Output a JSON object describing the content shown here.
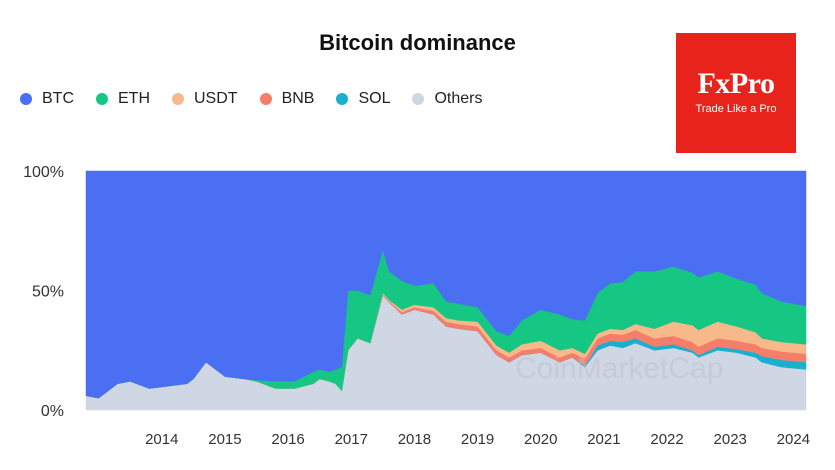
{
  "chart_data": {
    "type": "area",
    "title": "Bitcoin dominance",
    "stacked": true,
    "xlabel": "",
    "ylabel": "",
    "x_ticks": [
      "2014",
      "2015",
      "2016",
      "2017",
      "2018",
      "2019",
      "2020",
      "2021",
      "2022",
      "2023",
      "2024"
    ],
    "y_ticks": [
      "0%",
      "50%",
      "100%"
    ],
    "ylim": [
      0,
      100
    ],
    "xlim": [
      2013.3,
      2024.7
    ],
    "grid": false,
    "legend_position": "top-left",
    "x": [
      2013.3,
      2013.5,
      2013.8,
      2014.0,
      2014.3,
      2014.6,
      2014.9,
      2015.0,
      2015.2,
      2015.5,
      2015.8,
      2016.0,
      2016.3,
      2016.6,
      2016.9,
      2017.0,
      2017.15,
      2017.25,
      2017.35,
      2017.45,
      2017.6,
      2017.8,
      2018.0,
      2018.1,
      2018.3,
      2018.5,
      2018.8,
      2019.0,
      2019.2,
      2019.5,
      2019.8,
      2020.0,
      2020.2,
      2020.5,
      2020.8,
      2021.0,
      2021.2,
      2021.4,
      2021.6,
      2021.8,
      2022.0,
      2022.3,
      2022.6,
      2022.9,
      2023.0,
      2023.3,
      2023.6,
      2023.9,
      2024.0,
      2024.3,
      2024.7
    ],
    "series": [
      {
        "name": "Others",
        "color": "#cfd6e4",
        "values": [
          6,
          5,
          11,
          12,
          9,
          10,
          11,
          13,
          20,
          14,
          13,
          12,
          9,
          9,
          11,
          13,
          12,
          11,
          8,
          25,
          30,
          28,
          48,
          45,
          40,
          42,
          40,
          35,
          34,
          33,
          23,
          20,
          23,
          24,
          20,
          22,
          18,
          25,
          27,
          26,
          28,
          25,
          26,
          24,
          22,
          25,
          24,
          22,
          20,
          18,
          17
        ]
      },
      {
        "name": "SOL",
        "color": "#1aaecf",
        "values": [
          0,
          0,
          0,
          0,
          0,
          0,
          0,
          0,
          0,
          0,
          0,
          0,
          0,
          0,
          0,
          0,
          0,
          0,
          0,
          0,
          0,
          0,
          0,
          0,
          0,
          0,
          0,
          0,
          0,
          0,
          0,
          0,
          0,
          0,
          0,
          0,
          0.5,
          2,
          2,
          2.5,
          2,
          1.5,
          1.5,
          1,
          1,
          1.5,
          1.5,
          2,
          2.5,
          3,
          3
        ]
      },
      {
        "name": "BNB",
        "color": "#f47e6a",
        "values": [
          0,
          0,
          0,
          0,
          0,
          0,
          0,
          0,
          0,
          0,
          0,
          0,
          0,
          0,
          0,
          0,
          0,
          0,
          0,
          0,
          0,
          0,
          0.5,
          0.5,
          1,
          1,
          1.5,
          2,
          2,
          2,
          2,
          2,
          2,
          2,
          2,
          2,
          3,
          3,
          3,
          3,
          3.5,
          3.5,
          3.5,
          3.5,
          3.5,
          3.5,
          3.5,
          3.5,
          3.5,
          3.5,
          3.5
        ]
      },
      {
        "name": "USDT",
        "color": "#f7b98a",
        "values": [
          0,
          0,
          0,
          0,
          0,
          0,
          0,
          0,
          0,
          0,
          0,
          0,
          0,
          0,
          0,
          0,
          0,
          0,
          0,
          0,
          0,
          0,
          0.5,
          0.5,
          1,
          1,
          1.5,
          1.5,
          1.5,
          2,
          2,
          2,
          2.5,
          3,
          3,
          2,
          2,
          2,
          2,
          2,
          2.5,
          4,
          6,
          7,
          7,
          7,
          6,
          5,
          4,
          4,
          4
        ]
      },
      {
        "name": "ETH",
        "color": "#16c784",
        "values": [
          0,
          0,
          0,
          0,
          0,
          0,
          0,
          0,
          0,
          0,
          0,
          0.5,
          3,
          3,
          5,
          4,
          4,
          6,
          10,
          25,
          20,
          20,
          18,
          12,
          12,
          8,
          10,
          7,
          7,
          6,
          6,
          7,
          10,
          13,
          15,
          12,
          14,
          17,
          19,
          20,
          22,
          24,
          23,
          22,
          22,
          21,
          20,
          20,
          19,
          17,
          16
        ]
      },
      {
        "name": "BTC",
        "color": "#4a6ff3",
        "values": [
          94,
          95,
          89,
          88,
          91,
          90,
          89,
          87,
          80,
          86,
          87,
          87.5,
          88,
          88,
          84,
          83,
          84,
          83,
          82,
          50,
          50,
          52,
          33,
          42,
          46,
          48,
          47,
          54.5,
          55.5,
          57,
          67,
          69,
          62.5,
          58,
          60,
          62,
          62.5,
          51,
          47,
          46.5,
          42,
          42,
          40,
          42.5,
          44.5,
          42,
          45,
          47.5,
          51,
          54.5,
          56.5
        ]
      }
    ]
  },
  "legend": [
    {
      "label": "BTC",
      "color": "#4a6ff3"
    },
    {
      "label": "ETH",
      "color": "#16c784"
    },
    {
      "label": "USDT",
      "color": "#f7b98a"
    },
    {
      "label": "BNB",
      "color": "#f47e6a"
    },
    {
      "label": "SOL",
      "color": "#1aaecf"
    },
    {
      "label": "Others",
      "color": "#cfd6e4"
    }
  ],
  "brand": {
    "name": "FxPro",
    "tagline": "Trade Like a Pro",
    "color": "#e8231b"
  },
  "watermark": {
    "text": "CoinMarketCap"
  }
}
